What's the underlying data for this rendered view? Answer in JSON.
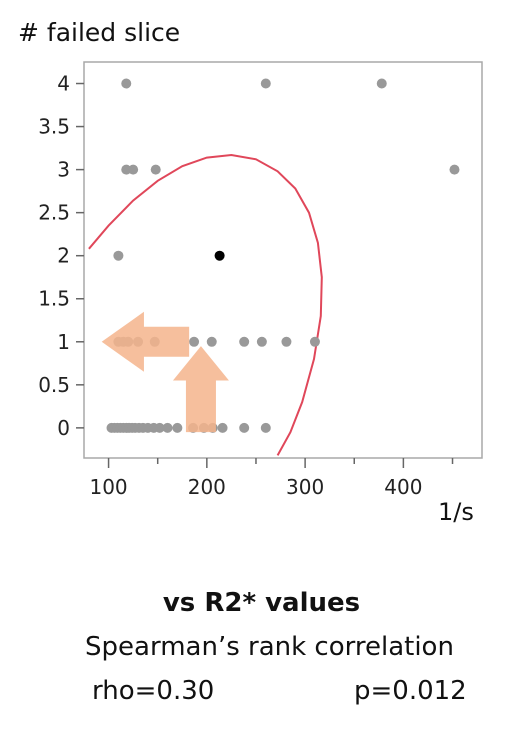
{
  "chart_data": {
    "type": "scatter",
    "title": "",
    "ylabel": "# failed slice",
    "xlabel": "1/s",
    "xlim": [
      75,
      480
    ],
    "ylim": [
      -0.35,
      4.25
    ],
    "x_ticks": [
      100,
      200,
      300,
      400
    ],
    "y_ticks": [
      0,
      0.5,
      1,
      1.5,
      2,
      2.5,
      3,
      3.5,
      4
    ],
    "x_tick_labels": [
      "100",
      "200",
      "300",
      "400"
    ],
    "y_tick_labels": [
      "0",
      "0.5",
      "1",
      "1.5",
      "2",
      "2.5",
      "3",
      "3.5",
      "4"
    ],
    "grid": false,
    "points": [
      {
        "x": 118,
        "y": 4
      },
      {
        "x": 260,
        "y": 4
      },
      {
        "x": 378,
        "y": 4
      },
      {
        "x": 118,
        "y": 3
      },
      {
        "x": 125,
        "y": 3
      },
      {
        "x": 148,
        "y": 3
      },
      {
        "x": 452,
        "y": 3
      },
      {
        "x": 110,
        "y": 2
      },
      {
        "x": 110,
        "y": 1
      },
      {
        "x": 115,
        "y": 1
      },
      {
        "x": 120,
        "y": 1
      },
      {
        "x": 130,
        "y": 1
      },
      {
        "x": 147,
        "y": 1
      },
      {
        "x": 187,
        "y": 1
      },
      {
        "x": 205,
        "y": 1
      },
      {
        "x": 238,
        "y": 1
      },
      {
        "x": 256,
        "y": 1
      },
      {
        "x": 281,
        "y": 1
      },
      {
        "x": 310,
        "y": 1
      },
      {
        "x": 103,
        "y": 0
      },
      {
        "x": 106,
        "y": 0
      },
      {
        "x": 109,
        "y": 0
      },
      {
        "x": 112,
        "y": 0
      },
      {
        "x": 115,
        "y": 0
      },
      {
        "x": 118,
        "y": 0
      },
      {
        "x": 121,
        "y": 0
      },
      {
        "x": 124,
        "y": 0
      },
      {
        "x": 127,
        "y": 0
      },
      {
        "x": 131,
        "y": 0
      },
      {
        "x": 135,
        "y": 0
      },
      {
        "x": 140,
        "y": 0
      },
      {
        "x": 146,
        "y": 0
      },
      {
        "x": 152,
        "y": 0
      },
      {
        "x": 160,
        "y": 0
      },
      {
        "x": 170,
        "y": 0
      },
      {
        "x": 186,
        "y": 0
      },
      {
        "x": 197,
        "y": 0
      },
      {
        "x": 206,
        "y": 0
      },
      {
        "x": 216,
        "y": 0
      },
      {
        "x": 238,
        "y": 0
      },
      {
        "x": 260,
        "y": 0
      }
    ],
    "highlight_point": {
      "x": 213,
      "y": 2,
      "color": "#000000"
    },
    "point_color": "#999999",
    "ellipse_color": "#e0475a",
    "ellipse_curve": [
      {
        "x": 80,
        "y": 2.08
      },
      {
        "x": 100,
        "y": 2.35
      },
      {
        "x": 125,
        "y": 2.64
      },
      {
        "x": 150,
        "y": 2.87
      },
      {
        "x": 175,
        "y": 3.04
      },
      {
        "x": 200,
        "y": 3.14
      },
      {
        "x": 225,
        "y": 3.17
      },
      {
        "x": 250,
        "y": 3.12
      },
      {
        "x": 272,
        "y": 2.98
      },
      {
        "x": 290,
        "y": 2.78
      },
      {
        "x": 304,
        "y": 2.5
      },
      {
        "x": 313,
        "y": 2.15
      },
      {
        "x": 317,
        "y": 1.75
      },
      {
        "x": 316,
        "y": 1.3
      },
      {
        "x": 309,
        "y": 0.8
      },
      {
        "x": 297,
        "y": 0.3
      },
      {
        "x": 285,
        "y": -0.05
      },
      {
        "x": 272,
        "y": -0.32
      }
    ],
    "arrow_color": "#f4b48c"
  },
  "caption": {
    "title": "vs R2* values",
    "subtitle": "Spearman’s rank correlation",
    "rho": "rho=0.30",
    "p": "p=0.012"
  }
}
